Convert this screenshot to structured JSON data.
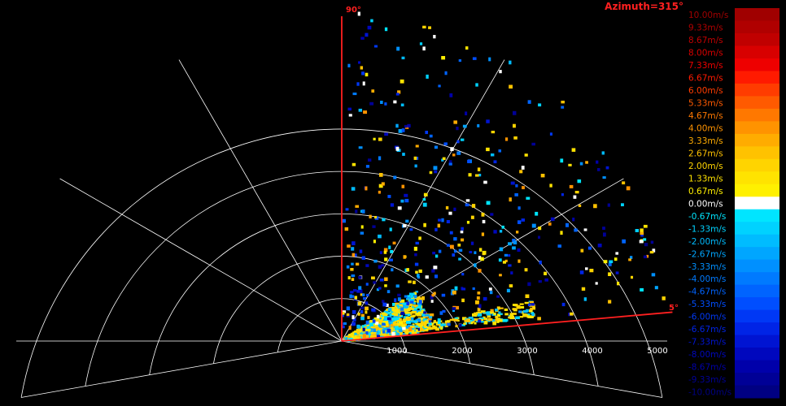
{
  "chart_data": {
    "type": "ppi-radar-sector",
    "title": "Azimuth=315°",
    "range_axis": {
      "ticks": [
        "1000",
        "2000",
        "3000",
        "4000",
        "5000"
      ],
      "max": 5000,
      "unit": "m"
    },
    "sector": {
      "start_elevation_deg": 5,
      "end_elevation_deg": 90,
      "start_label": "5°",
      "end_label": "90°"
    },
    "grid": true,
    "legend": {
      "placement": "right",
      "min": -10.0,
      "max": 10.0,
      "unit": "m/s",
      "entries": [
        {
          "label": "10.00m/s",
          "color": "#a00000"
        },
        {
          "label": "9.33m/s",
          "color": "#b00000"
        },
        {
          "label": "8.67m/s",
          "color": "#c00000"
        },
        {
          "label": "8.00m/s",
          "color": "#d80000"
        },
        {
          "label": "7.33m/s",
          "color": "#ee0000"
        },
        {
          "label": "6.67m/s",
          "color": "#ff1a00"
        },
        {
          "label": "6.00m/s",
          "color": "#ff3c00"
        },
        {
          "label": "5.33m/s",
          "color": "#ff5a00"
        },
        {
          "label": "4.67m/s",
          "color": "#ff7800"
        },
        {
          "label": "4.00m/s",
          "color": "#ff9300"
        },
        {
          "label": "3.33m/s",
          "color": "#ffac00"
        },
        {
          "label": "2.67m/s",
          "color": "#ffc200"
        },
        {
          "label": "2.00m/s",
          "color": "#ffd400"
        },
        {
          "label": "1.33m/s",
          "color": "#ffe300"
        },
        {
          "label": "0.67m/s",
          "color": "#fff000"
        },
        {
          "label": "0.00m/s",
          "color": "#ffffff"
        },
        {
          "label": "-0.67m/s",
          "color": "#00e5ff"
        },
        {
          "label": "-1.33m/s",
          "color": "#00d2ff"
        },
        {
          "label": "-2.00m/s",
          "color": "#00bcff"
        },
        {
          "label": "-2.67m/s",
          "color": "#00a6ff"
        },
        {
          "label": "-3.33m/s",
          "color": "#0090ff"
        },
        {
          "label": "-4.00m/s",
          "color": "#007aff"
        },
        {
          "label": "-4.67m/s",
          "color": "#0064ff"
        },
        {
          "label": "-5.33m/s",
          "color": "#004eff"
        },
        {
          "label": "-6.00m/s",
          "color": "#0038f5"
        },
        {
          "label": "-6.67m/s",
          "color": "#0024e6"
        },
        {
          "label": "-7.33m/s",
          "color": "#0014d2"
        },
        {
          "label": "-8.00m/s",
          "color": "#0008be"
        },
        {
          "label": "-8.67m/s",
          "color": "#0000aa"
        },
        {
          "label": "-9.33m/s",
          "color": "#000096"
        },
        {
          "label": "-10.00m/s",
          "color": "#000082"
        }
      ]
    },
    "colors": {
      "background": "#000000",
      "grid": "#ffffff",
      "sector_edge": "#ff2020",
      "title": "#ff2020",
      "edge_label": "#ff2020",
      "tick_label": "#ffffff"
    }
  }
}
